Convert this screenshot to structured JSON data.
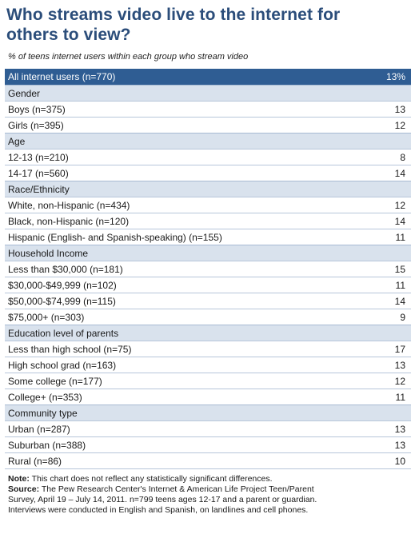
{
  "title_line1": "Who streams video live to the internet for",
  "title_line2": "others to view?",
  "subtitle": "% of teens internet users within each group who stream video",
  "chart_data": {
    "type": "table",
    "total": {
      "label": "All internet users (n=770)",
      "value": "13%"
    },
    "groups": [
      {
        "header": "Gender",
        "rows": [
          {
            "label": "Boys (n=375)",
            "value": 13
          },
          {
            "label": "Girls (n=395)",
            "value": 12
          }
        ]
      },
      {
        "header": "Age",
        "rows": [
          {
            "label": "12-13 (n=210)",
            "value": 8
          },
          {
            "label": "14-17 (n=560)",
            "value": 14
          }
        ]
      },
      {
        "header": "Race/Ethnicity",
        "rows": [
          {
            "label": "White, non-Hispanic (n=434)",
            "value": 12
          },
          {
            "label": "Black, non-Hispanic (n=120)",
            "value": 14
          },
          {
            "label": "Hispanic (English- and Spanish-speaking) (n=155)",
            "value": 11
          }
        ]
      },
      {
        "header": "Household Income",
        "rows": [
          {
            "label": "Less than $30,000 (n=181)",
            "value": 15
          },
          {
            "label": "$30,000-$49,999 (n=102)",
            "value": 11
          },
          {
            "label": "$50,000-$74,999 (n=115)",
            "value": 14
          },
          {
            "label": "$75,000+ (n=303)",
            "value": 9
          }
        ]
      },
      {
        "header": "Education level of parents",
        "rows": [
          {
            "label": "Less than high school (n=75)",
            "value": 17
          },
          {
            "label": "High school grad (n=163)",
            "value": 13
          },
          {
            "label": "Some college (n=177)",
            "value": 12
          },
          {
            "label": "College+ (n=353)",
            "value": 11
          }
        ]
      },
      {
        "header": "Community type",
        "rows": [
          {
            "label": "Urban (n=287)",
            "value": 13
          },
          {
            "label": "Suburban (n=388)",
            "value": 13
          },
          {
            "label": "Rural (n=86)",
            "value": 10
          }
        ]
      }
    ]
  },
  "notes": {
    "note_label": "Note:",
    "note_text": " This chart does not reflect any statistically significant differences.",
    "source_label": "Source:",
    "source_line1": " The Pew Research Center's Internet & American Life Project Teen/Parent",
    "source_line2": "Survey, April 19 – July 14, 2011. n=799 teens ages 12-17 and a parent or guardian.",
    "source_line3": "Interviews were conducted in English and Spanish, on landlines and cell phones."
  },
  "colors": {
    "title": "#2b4d7a",
    "total_row_bg": "#2f5d93",
    "header_row_bg": "#d9e2ed",
    "row_border": "#b7c6da"
  }
}
